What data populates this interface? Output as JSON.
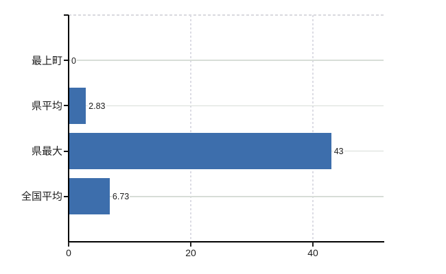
{
  "chart_data": {
    "type": "bar",
    "orientation": "horizontal",
    "title": "",
    "xlabel": "",
    "ylabel": "",
    "categories": [
      "最上町",
      "県平均",
      "県最大",
      "全国平均"
    ],
    "values": [
      0,
      2.83,
      43,
      6.73
    ],
    "value_labels": [
      "0",
      "2.83",
      "43",
      "6.73"
    ],
    "x_ticks": [
      0,
      20,
      40
    ],
    "x_tick_labels": [
      "0",
      "20",
      "40"
    ],
    "xlim": [
      0,
      51.7
    ],
    "grid": true,
    "legend": false,
    "colors": {
      "bar": "#3d6eac",
      "h_gridline": "#d7ddd7",
      "v_gridline": "#dcdce4",
      "top_border": "#d8d8de",
      "axis": "#000000",
      "text": "#1c1c1c"
    }
  }
}
